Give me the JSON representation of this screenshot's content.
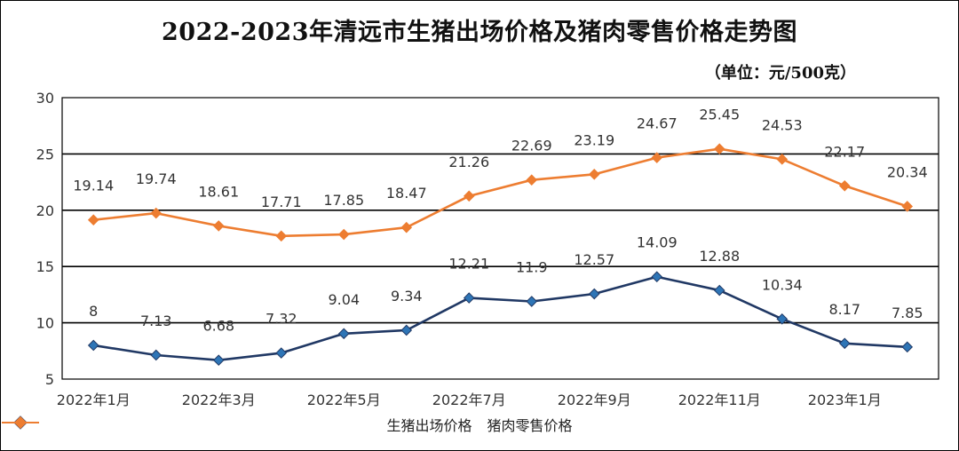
{
  "title": "2022-2023年清远市生猪出场价格及猪肉零售价格走势图",
  "unit_label": "（单位：元/500克）",
  "chart_data": {
    "type": "line",
    "title": "2022-2023年清远市生猪出场价格及猪肉零售价格走势图",
    "x_tick_labels": [
      "2022年1月",
      "2022年3月",
      "2022年5月",
      "2022年7月",
      "2022年9月",
      "2022年11月",
      "2023年1月"
    ],
    "x_tick_positions": [
      0,
      2,
      4,
      6,
      8,
      10,
      12
    ],
    "point_count": 14,
    "ylim": [
      5,
      30
    ],
    "yticks": [
      5,
      10,
      15,
      20,
      25,
      30
    ],
    "grid": true,
    "legend_position": "bottom",
    "series": [
      {
        "name": "生猪出场价格",
        "color": "#203864",
        "marker_color": "#2E75B6",
        "values": [
          8,
          7.13,
          6.68,
          7.32,
          9.04,
          9.34,
          12.21,
          11.9,
          12.57,
          14.09,
          12.88,
          10.34,
          8.17,
          7.85
        ],
        "labels": [
          "8",
          "7.13",
          "6.68",
          "7.32",
          "9.04",
          "9.34",
          "12.21",
          "11.9",
          "12.57",
          "14.09",
          "12.88",
          "10.34",
          "8.17",
          "7.85"
        ]
      },
      {
        "name": "猪肉零售价格",
        "color": "#ED7D31",
        "marker_color": "#ED7D31",
        "values": [
          19.14,
          19.74,
          18.61,
          17.71,
          17.85,
          18.47,
          21.26,
          22.69,
          23.19,
          24.67,
          25.45,
          24.53,
          22.17,
          20.34
        ],
        "labels": [
          "19.14",
          "19.74",
          "18.61",
          "17.71",
          "17.85",
          "18.47",
          "21.26",
          "22.69",
          "23.19",
          "24.67",
          "25.45",
          "24.53",
          "22.17",
          "20.34"
        ]
      }
    ]
  }
}
